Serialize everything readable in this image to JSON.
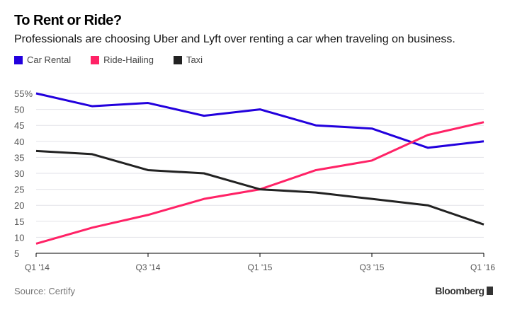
{
  "chart_data": {
    "type": "line",
    "title": "To Rent or Ride?",
    "subtitle": "Professionals are choosing Uber and Lyft over renting a car when traveling on business.",
    "categories": [
      "Q1 '14",
      "Q2 '14",
      "Q3 '14",
      "Q4 '14",
      "Q1 '15",
      "Q2 '15",
      "Q3 '15",
      "Q4 '15",
      "Q1 '16"
    ],
    "x_tick_labels": [
      "Q1 '14",
      "Q3 '14",
      "Q1 '15",
      "Q3 '15",
      "Q1 '16"
    ],
    "y_tick_labels": [
      "55%",
      "50",
      "45",
      "40",
      "35",
      "30",
      "25",
      "20",
      "15",
      "10",
      "5"
    ],
    "ylim": [
      5,
      55
    ],
    "grid": true,
    "legend_position": "top-left",
    "series": [
      {
        "name": "Car Rental",
        "color": "#2200dd",
        "values": [
          55,
          51,
          52,
          48,
          50,
          45,
          44,
          38,
          40
        ]
      },
      {
        "name": "Ride-Hailing",
        "color": "#ff2266",
        "values": [
          8,
          13,
          17,
          22,
          25,
          31,
          34,
          42,
          46
        ]
      },
      {
        "name": "Taxi",
        "color": "#222222",
        "values": [
          37,
          36,
          31,
          30,
          25,
          24,
          22,
          20,
          14
        ]
      }
    ],
    "source": "Source: Certify"
  },
  "branding": {
    "logo": "Bloomberg"
  }
}
